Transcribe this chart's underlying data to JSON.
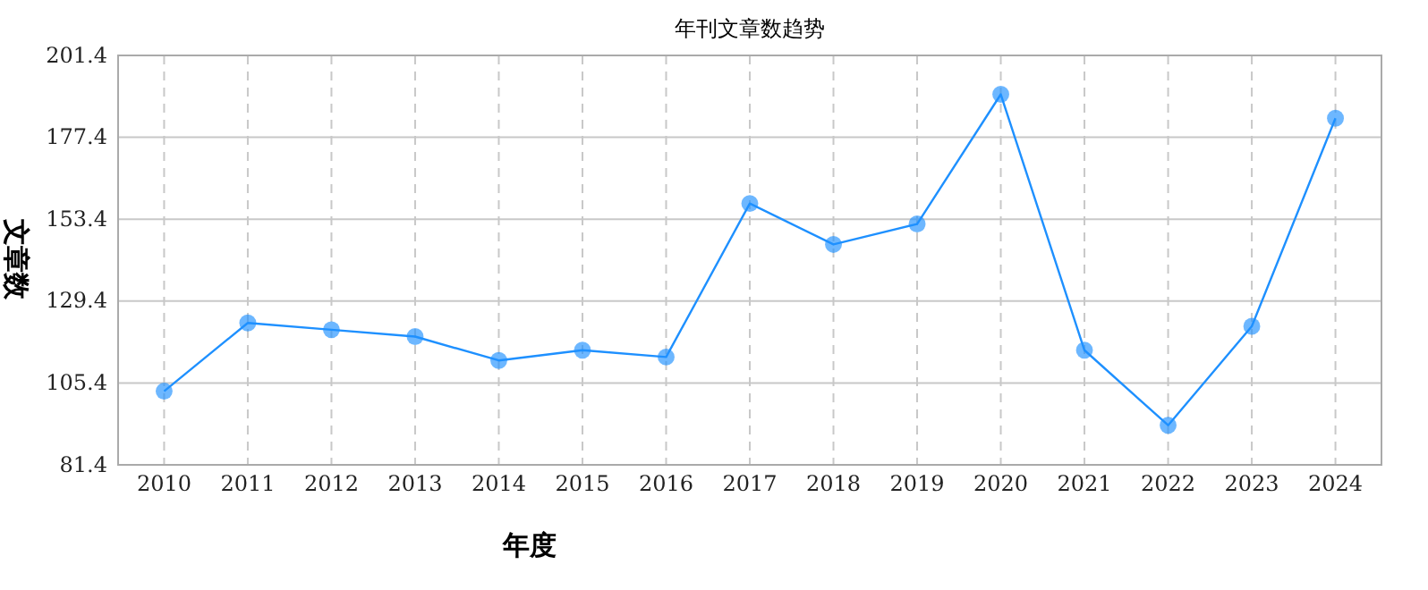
{
  "chart_data": {
    "type": "line",
    "title": "年刊文章数趋势",
    "xlabel": "年度",
    "ylabel": "文章数",
    "categories": [
      "2010",
      "2011",
      "2012",
      "2013",
      "2014",
      "2015",
      "2016",
      "2017",
      "2018",
      "2019",
      "2020",
      "2021",
      "2022",
      "2023",
      "2024"
    ],
    "series": [
      {
        "color": "#1e90ff",
        "values": [
          103,
          123,
          121,
          119,
          112,
          115,
          113,
          158,
          146,
          152,
          190,
          115,
          93,
          122,
          183
        ]
      }
    ],
    "ylim": [
      81.4,
      201.4
    ],
    "yticks": [
      {
        "value": 81.4,
        "label": "81.4"
      },
      {
        "value": 105.4,
        "label": "105.4"
      },
      {
        "value": 129.4,
        "label": "129.4"
      },
      {
        "value": 153.4,
        "label": "153.4"
      },
      {
        "value": 177.4,
        "label": "177.4"
      },
      {
        "value": 201.4,
        "label": "201.4"
      }
    ],
    "grid": true,
    "marker": "circle",
    "line_style": "solid"
  }
}
